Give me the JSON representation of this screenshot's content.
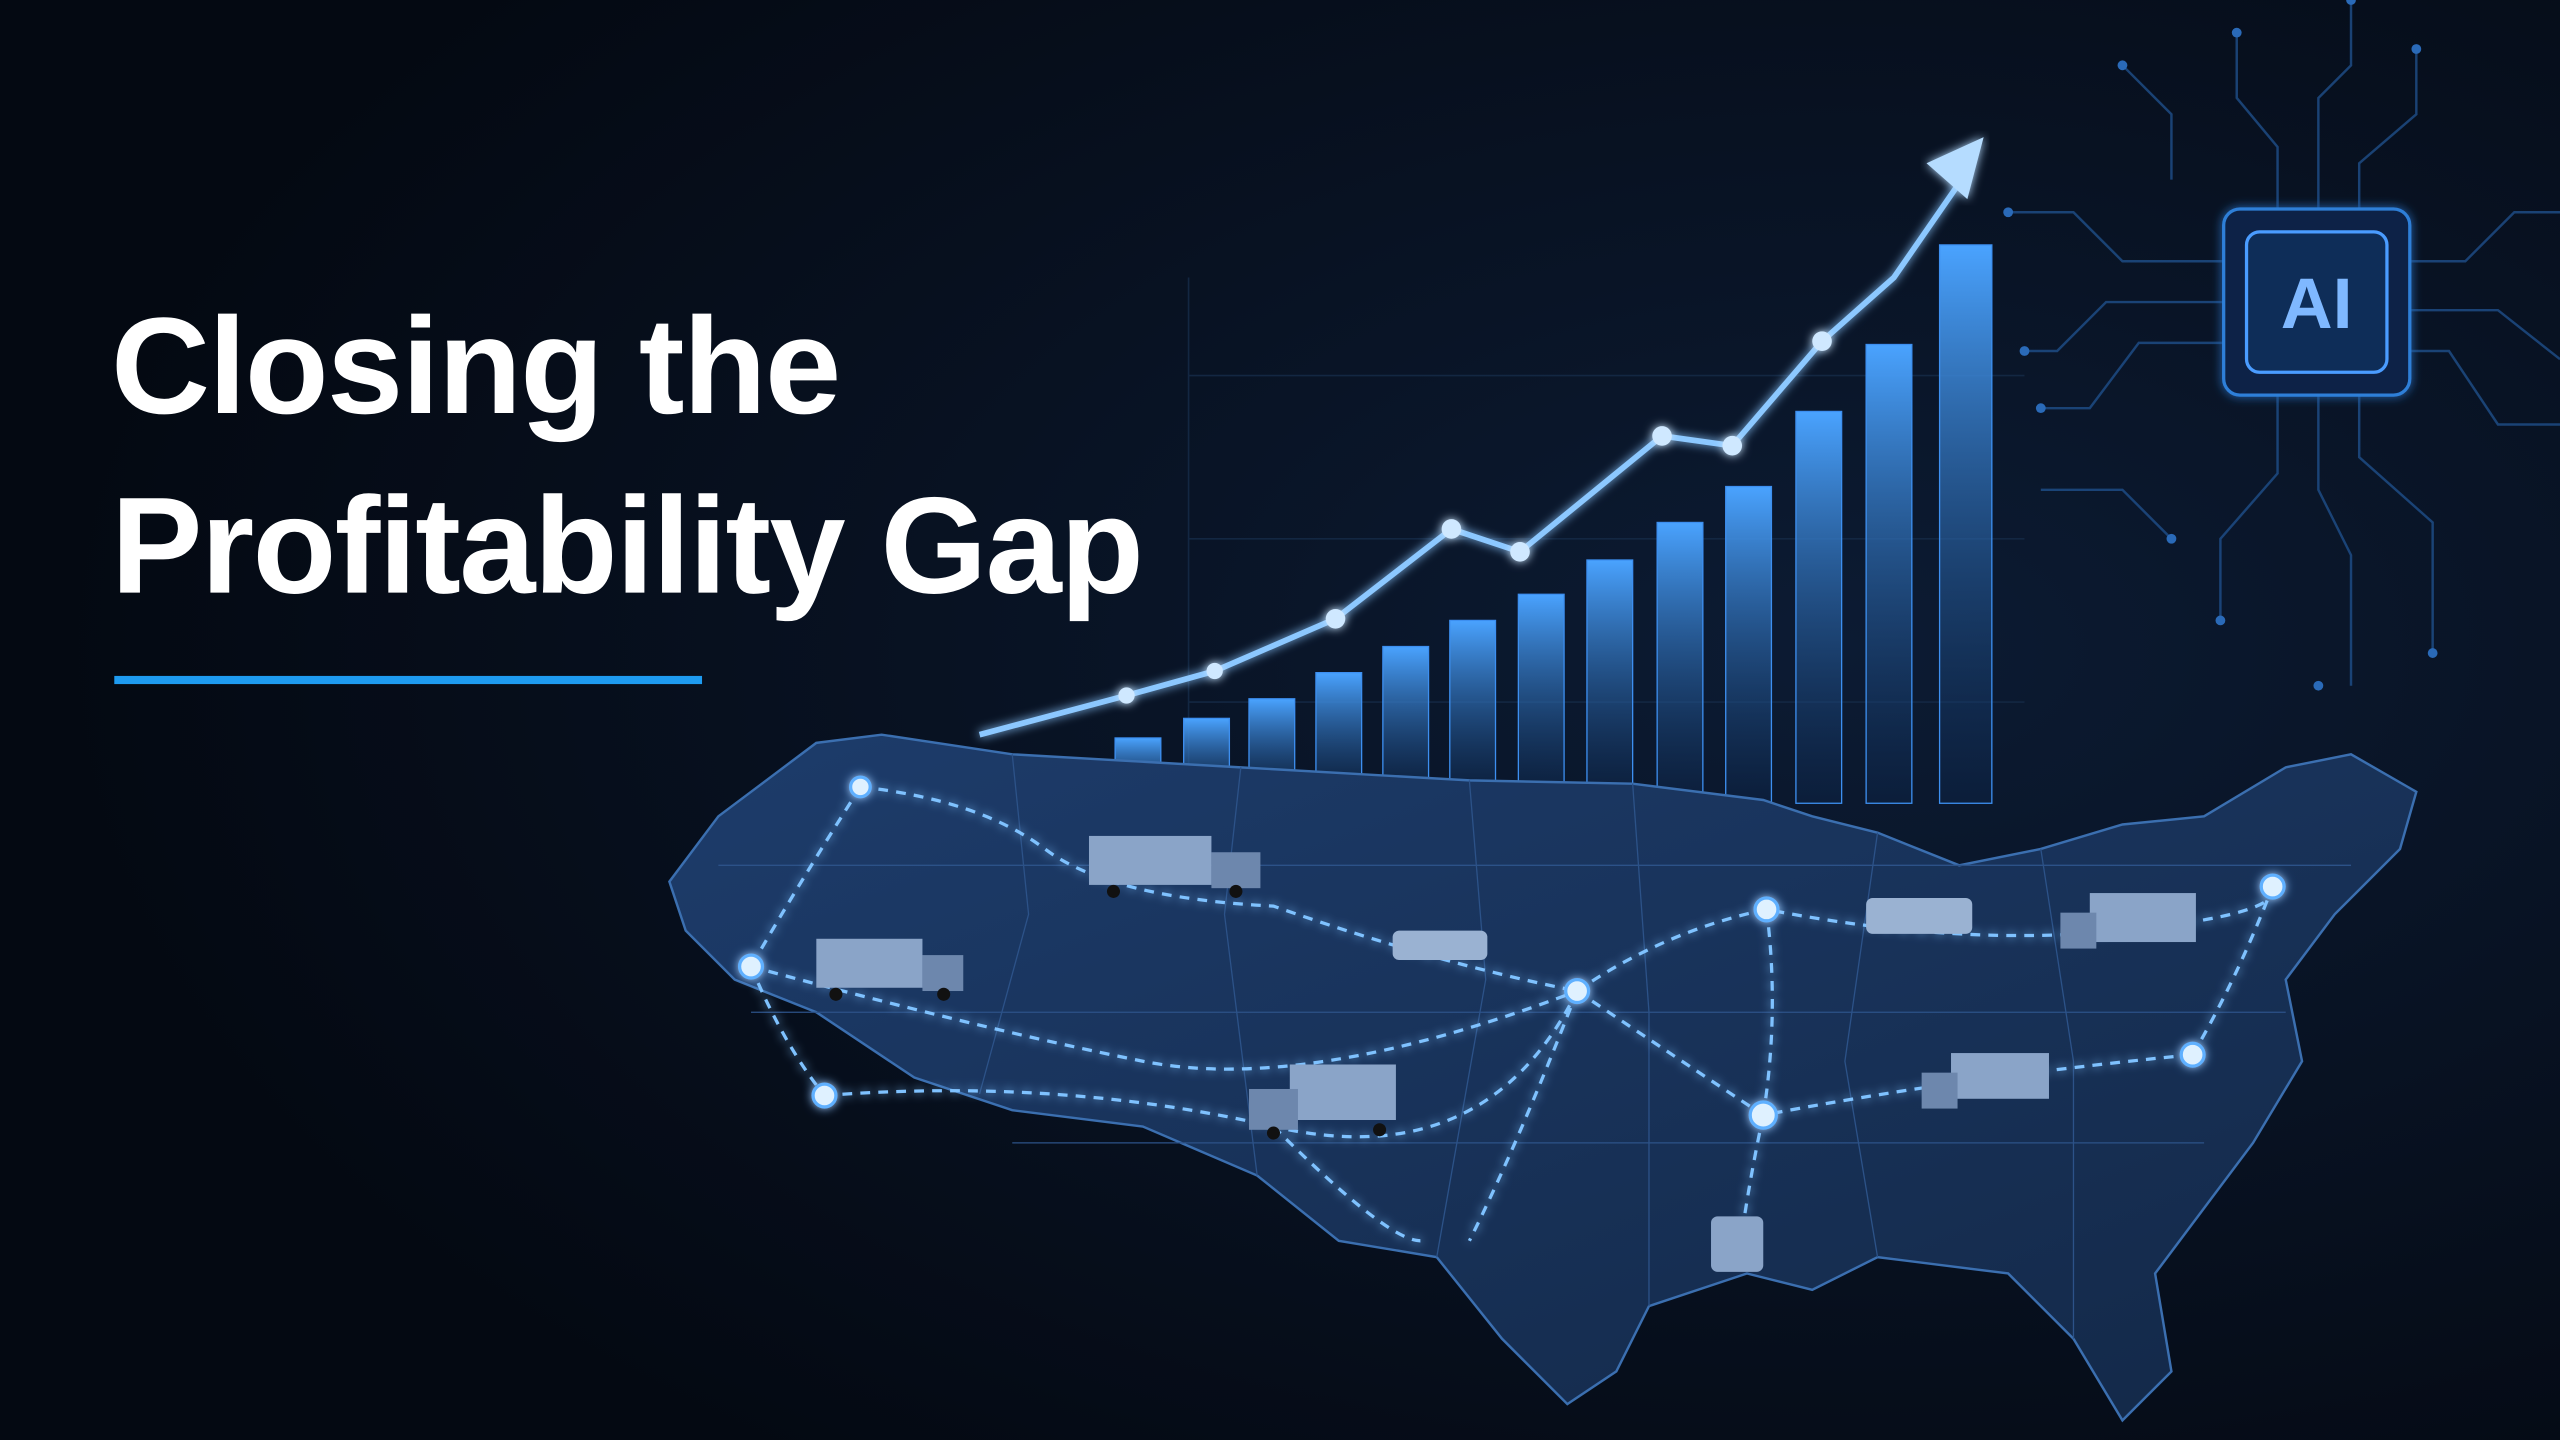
{
  "title_lines": [
    "Closing the",
    "Profitability Gap"
  ],
  "chip_label": "AI"
}
